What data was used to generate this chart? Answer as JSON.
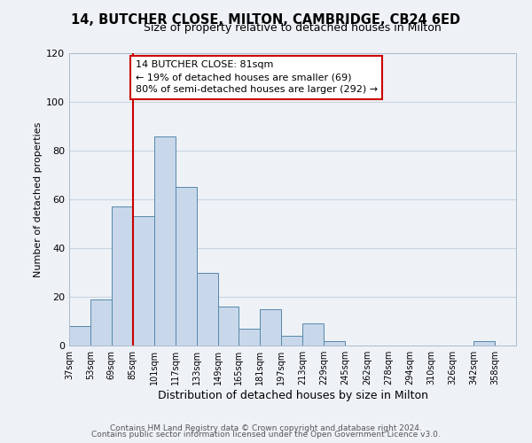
{
  "title": "14, BUTCHER CLOSE, MILTON, CAMBRIDGE, CB24 6ED",
  "subtitle": "Size of property relative to detached houses in Milton",
  "xlabel": "Distribution of detached houses by size in Milton",
  "ylabel": "Number of detached properties",
  "footer_lines": [
    "Contains HM Land Registry data © Crown copyright and database right 2024.",
    "Contains public sector information licensed under the Open Government Licence v3.0."
  ],
  "bar_left_edges": [
    37,
    53,
    69,
    85,
    101,
    117,
    133,
    149,
    165,
    181,
    197,
    213,
    229,
    245,
    262,
    278,
    294,
    310,
    326,
    342
  ],
  "bar_heights": [
    8,
    19,
    57,
    53,
    86,
    65,
    30,
    16,
    7,
    15,
    4,
    9,
    2,
    0,
    0,
    0,
    0,
    0,
    0,
    2
  ],
  "bin_width": 16,
  "bar_facecolor": "#c8d8ea",
  "bar_edgecolor": "#5588aa",
  "ylim": [
    0,
    120
  ],
  "yticks": [
    0,
    20,
    40,
    60,
    80,
    100,
    120
  ],
  "xlim": [
    37,
    374
  ],
  "xtick_labels": [
    "37sqm",
    "53sqm",
    "69sqm",
    "85sqm",
    "101sqm",
    "117sqm",
    "133sqm",
    "149sqm",
    "165sqm",
    "181sqm",
    "197sqm",
    "213sqm",
    "229sqm",
    "245sqm",
    "262sqm",
    "278sqm",
    "294sqm",
    "310sqm",
    "326sqm",
    "342sqm",
    "358sqm"
  ],
  "xtick_positions": [
    37,
    53,
    69,
    85,
    101,
    117,
    133,
    149,
    165,
    181,
    197,
    213,
    229,
    245,
    262,
    278,
    294,
    310,
    326,
    342,
    358
  ],
  "vline_x": 85,
  "vline_color": "#cc0000",
  "annotation_text": "14 BUTCHER CLOSE: 81sqm\n← 19% of detached houses are smaller (69)\n80% of semi-detached houses are larger (292) →",
  "grid_color": "#c8d4e0",
  "background_color": "#eef2f7",
  "title_fontsize": 10.5,
  "subtitle_fontsize": 9,
  "ylabel_fontsize": 8,
  "xlabel_fontsize": 9,
  "annotation_fontsize": 8,
  "ytick_fontsize": 8,
  "xtick_fontsize": 7,
  "footer_fontsize": 6.5
}
